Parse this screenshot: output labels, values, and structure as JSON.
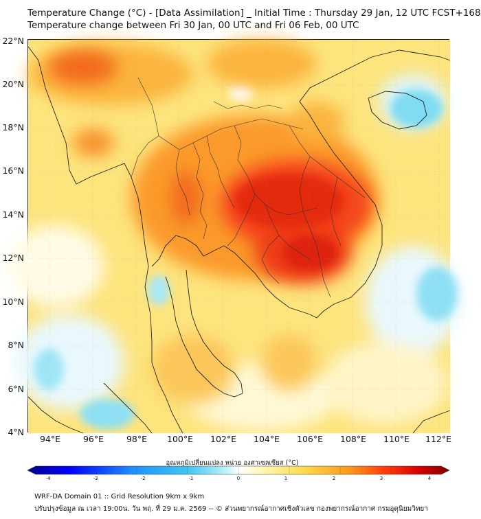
{
  "header": {
    "title": "Temperature Change (°C) - [Data Assimilation] _ Initial Time : Thursday 29 Jan, 12 UTC FCST+168",
    "subtitle": "Temperature change between Fri 30 Jan, 00 UTC and Fri 06 Feb, 00 UTC"
  },
  "map": {
    "lat_labels": [
      "22°N",
      "20°N",
      "18°N",
      "16°N",
      "14°N",
      "12°N",
      "10°N",
      "8°N",
      "6°N",
      "4°N"
    ],
    "lon_labels": [
      "94°E",
      "96°E",
      "98°E",
      "100°E",
      "102°E",
      "104°E",
      "106°E",
      "108°E",
      "110°E",
      "112°E"
    ],
    "lat_range": [
      4,
      22.2
    ],
    "lon_range": [
      93,
      112.5
    ]
  },
  "colorbar": {
    "label": "อุณหภูมิเปลี่ยนแปลง หน่วย องศาเซลเซียส (°C)",
    "ticks": [
      "-4",
      "-3",
      "-2",
      "-1",
      "0",
      "1",
      "2",
      "3",
      "4"
    ],
    "range": [
      -4,
      4
    ],
    "colors": [
      "#00008b",
      "#0000ff",
      "#1e90ff",
      "#3fc7f0",
      "#bdf1fb",
      "#ffffff",
      "#fff7b0",
      "#ffd84a",
      "#ff9a1a",
      "#ff3a0a",
      "#d40000",
      "#800000"
    ]
  },
  "footer": {
    "line1": "WRF-DA Domain 01 :: Grid Resolution 9km x 9km",
    "line2": "ปรับปรุงข้อมูล ณ เวลา 19:00น. วัน พฤ. ที่ 29 ม.ค. 2569 -- © ส่วนพยากรณ์อากาศเชิงตัวเลข กองพยากรณ์อากาศ กรมอุตุนิยมวิทยา"
  }
}
